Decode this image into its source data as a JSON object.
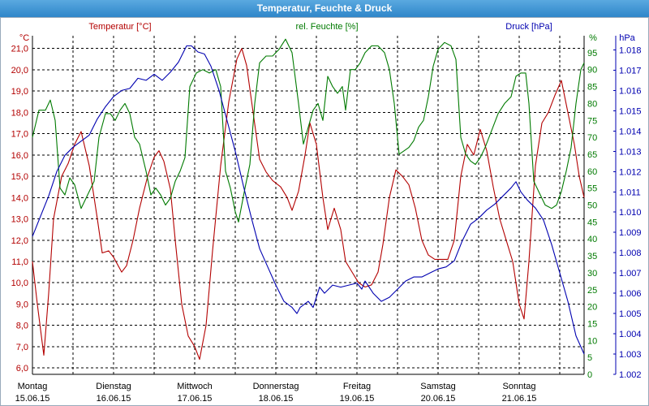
{
  "window": {
    "title": "Temperatur, Feuchte & Druck"
  },
  "colors": {
    "temperature": "#b30000",
    "humidity": "#007a00",
    "pressure": "#0000b0",
    "grid": "#000000",
    "title_bg": "#3a93d4"
  },
  "chart_data": {
    "type": "line",
    "title": "Temperatur, Feuchte & Druck",
    "x_labels": [
      {
        "day": "Montag",
        "date": "15.06.15"
      },
      {
        "day": "Dienstag",
        "date": "16.06.15"
      },
      {
        "day": "Mittwoch",
        "date": "17.06.15"
      },
      {
        "day": "Donnerstag",
        "date": "18.06.15"
      },
      {
        "day": "Freitag",
        "date": "19.06.15"
      },
      {
        "day": "Samstag",
        "date": "20.06.15"
      },
      {
        "day": "Sonntag",
        "date": "21.06.15"
      }
    ],
    "xlim": [
      0,
      6.8
    ],
    "grid": true,
    "axes": {
      "temperature": {
        "label": "Temperatur [°C]",
        "unit": "°C",
        "ylim": [
          5.7,
          21.6
        ],
        "ticks": [
          "6,0",
          "7,0",
          "8,0",
          "9,0",
          "10,0",
          "11,0",
          "12,0",
          "13,0",
          "14,0",
          "15,0",
          "16,0",
          "17,0",
          "18,0",
          "19,0",
          "20,0",
          "21,0"
        ]
      },
      "humidity": {
        "label": "rel. Feuchte [%]",
        "unit": "%",
        "ylim": [
          0,
          100
        ],
        "ticks": [
          "0",
          "5",
          "10",
          "15",
          "20",
          "25",
          "30",
          "35",
          "40",
          "45",
          "50",
          "55",
          "60",
          "65",
          "70",
          "75",
          "80",
          "85",
          "90",
          "95"
        ]
      },
      "pressure": {
        "label": "Druck [hPa]",
        "unit": "hPa",
        "ylim": [
          1002.0,
          1018.7
        ],
        "ticks": [
          "1.002",
          "1.003",
          "1.004",
          "1.005",
          "1.006",
          "1.007",
          "1.008",
          "1.009",
          "1.010",
          "1.011",
          "1.012",
          "1.013",
          "1.014",
          "1.015",
          "1.016",
          "1.017",
          "1.018"
        ]
      }
    },
    "series": [
      {
        "name": "Temperatur [°C]",
        "axis": "temperature",
        "points": [
          [
            0,
            11.0
          ],
          [
            0.06,
            9.0
          ],
          [
            0.14,
            6.6
          ],
          [
            0.2,
            9.5
          ],
          [
            0.26,
            13.0
          ],
          [
            0.36,
            15.0
          ],
          [
            0.44,
            15.6
          ],
          [
            0.52,
            16.5
          ],
          [
            0.6,
            17.1
          ],
          [
            0.7,
            15.5
          ],
          [
            0.8,
            13.0
          ],
          [
            0.86,
            11.4
          ],
          [
            0.94,
            11.5
          ],
          [
            1.0,
            11.2
          ],
          [
            1.1,
            10.5
          ],
          [
            1.16,
            10.8
          ],
          [
            1.24,
            12.0
          ],
          [
            1.32,
            13.5
          ],
          [
            1.42,
            15.0
          ],
          [
            1.5,
            15.9
          ],
          [
            1.56,
            16.2
          ],
          [
            1.62,
            15.7
          ],
          [
            1.7,
            14.4
          ],
          [
            1.76,
            12.0
          ],
          [
            1.84,
            9.0
          ],
          [
            1.92,
            7.5
          ],
          [
            2.0,
            7.0
          ],
          [
            2.06,
            6.4
          ],
          [
            2.14,
            8.0
          ],
          [
            2.22,
            11.5
          ],
          [
            2.32,
            15.5
          ],
          [
            2.42,
            18.5
          ],
          [
            2.52,
            20.5
          ],
          [
            2.58,
            21.0
          ],
          [
            2.64,
            20.2
          ],
          [
            2.72,
            18.0
          ],
          [
            2.8,
            15.8
          ],
          [
            2.88,
            15.2
          ],
          [
            2.96,
            14.8
          ],
          [
            3.06,
            14.5
          ],
          [
            3.14,
            14.0
          ],
          [
            3.2,
            13.4
          ],
          [
            3.28,
            14.3
          ],
          [
            3.36,
            16.0
          ],
          [
            3.42,
            17.5
          ],
          [
            3.5,
            16.5
          ],
          [
            3.58,
            14.0
          ],
          [
            3.64,
            12.5
          ],
          [
            3.72,
            13.5
          ],
          [
            3.8,
            12.5
          ],
          [
            3.86,
            11.0
          ],
          [
            3.94,
            10.5
          ],
          [
            4.02,
            10.0
          ],
          [
            4.1,
            9.8
          ],
          [
            4.18,
            9.9
          ],
          [
            4.26,
            10.5
          ],
          [
            4.32,
            11.8
          ],
          [
            4.4,
            14.0
          ],
          [
            4.48,
            15.3
          ],
          [
            4.56,
            15.0
          ],
          [
            4.64,
            14.6
          ],
          [
            4.72,
            13.5
          ],
          [
            4.8,
            12.0
          ],
          [
            4.88,
            11.3
          ],
          [
            4.96,
            11.1
          ],
          [
            5.04,
            11.1
          ],
          [
            5.12,
            11.1
          ],
          [
            5.2,
            12.0
          ],
          [
            5.28,
            15.0
          ],
          [
            5.36,
            16.5
          ],
          [
            5.44,
            16.0
          ],
          [
            5.52,
            17.2
          ],
          [
            5.6,
            16.2
          ],
          [
            5.68,
            14.5
          ],
          [
            5.76,
            13.0
          ],
          [
            5.84,
            12.0
          ],
          [
            5.92,
            11.0
          ],
          [
            6.0,
            9.0
          ],
          [
            6.06,
            8.3
          ],
          [
            6.12,
            11.0
          ],
          [
            6.2,
            15.5
          ],
          [
            6.28,
            17.5
          ],
          [
            6.36,
            18.0
          ],
          [
            6.44,
            18.8
          ],
          [
            6.52,
            19.5
          ],
          [
            6.6,
            18.0
          ],
          [
            6.68,
            16.5
          ],
          [
            6.74,
            15.0
          ],
          [
            6.8,
            14.0
          ]
        ]
      },
      {
        "name": "rel. Feuchte [%]",
        "axis": "humidity",
        "points": [
          [
            0,
            70
          ],
          [
            0.08,
            78
          ],
          [
            0.16,
            78
          ],
          [
            0.22,
            81
          ],
          [
            0.28,
            75
          ],
          [
            0.34,
            55
          ],
          [
            0.4,
            53
          ],
          [
            0.46,
            58
          ],
          [
            0.52,
            56
          ],
          [
            0.6,
            49
          ],
          [
            0.68,
            53
          ],
          [
            0.76,
            57
          ],
          [
            0.82,
            70
          ],
          [
            0.9,
            77
          ],
          [
            0.96,
            77
          ],
          [
            1.02,
            75
          ],
          [
            1.08,
            78
          ],
          [
            1.14,
            80
          ],
          [
            1.2,
            77
          ],
          [
            1.26,
            70
          ],
          [
            1.32,
            68
          ],
          [
            1.4,
            60
          ],
          [
            1.46,
            53
          ],
          [
            1.52,
            55
          ],
          [
            1.58,
            53
          ],
          [
            1.64,
            50
          ],
          [
            1.7,
            52
          ],
          [
            1.76,
            57
          ],
          [
            1.82,
            60
          ],
          [
            1.88,
            64
          ],
          [
            1.94,
            85
          ],
          [
            2.02,
            89
          ],
          [
            2.1,
            90
          ],
          [
            2.18,
            89
          ],
          [
            2.26,
            90
          ],
          [
            2.32,
            85
          ],
          [
            2.38,
            60
          ],
          [
            2.44,
            55
          ],
          [
            2.5,
            48
          ],
          [
            2.54,
            45
          ],
          [
            2.62,
            55
          ],
          [
            2.68,
            62
          ],
          [
            2.74,
            80
          ],
          [
            2.8,
            92
          ],
          [
            2.88,
            94
          ],
          [
            2.96,
            94
          ],
          [
            3.04,
            96
          ],
          [
            3.12,
            99
          ],
          [
            3.2,
            95
          ],
          [
            3.28,
            80
          ],
          [
            3.34,
            68
          ],
          [
            3.4,
            73
          ],
          [
            3.46,
            78
          ],
          [
            3.52,
            80
          ],
          [
            3.58,
            75
          ],
          [
            3.64,
            88
          ],
          [
            3.7,
            85
          ],
          [
            3.76,
            83
          ],
          [
            3.82,
            85
          ],
          [
            3.86,
            78
          ],
          [
            3.92,
            90
          ],
          [
            3.98,
            90
          ],
          [
            4.04,
            92
          ],
          [
            4.1,
            95
          ],
          [
            4.18,
            97
          ],
          [
            4.26,
            97
          ],
          [
            4.34,
            95
          ],
          [
            4.4,
            90
          ],
          [
            4.46,
            80
          ],
          [
            4.52,
            65
          ],
          [
            4.58,
            66
          ],
          [
            4.64,
            67
          ],
          [
            4.7,
            69
          ],
          [
            4.76,
            73
          ],
          [
            4.82,
            75
          ],
          [
            4.88,
            82
          ],
          [
            4.94,
            91
          ],
          [
            5.0,
            96
          ],
          [
            5.08,
            98
          ],
          [
            5.16,
            97
          ],
          [
            5.22,
            93
          ],
          [
            5.28,
            70
          ],
          [
            5.34,
            65
          ],
          [
            5.4,
            63
          ],
          [
            5.46,
            62
          ],
          [
            5.52,
            64
          ],
          [
            5.58,
            67
          ],
          [
            5.66,
            72
          ],
          [
            5.74,
            77
          ],
          [
            5.82,
            80
          ],
          [
            5.9,
            82
          ],
          [
            5.96,
            88
          ],
          [
            6.02,
            89
          ],
          [
            6.08,
            89
          ],
          [
            6.12,
            80
          ],
          [
            6.18,
            57
          ],
          [
            6.26,
            53
          ],
          [
            6.32,
            50
          ],
          [
            6.4,
            49
          ],
          [
            6.46,
            50
          ],
          [
            6.52,
            54
          ],
          [
            6.58,
            60
          ],
          [
            6.64,
            67
          ],
          [
            6.7,
            80
          ],
          [
            6.76,
            90
          ],
          [
            6.8,
            92
          ]
        ]
      },
      {
        "name": "Druck [hPa]",
        "axis": "pressure",
        "points": [
          [
            0,
            1008.8
          ],
          [
            0.1,
            1009.8
          ],
          [
            0.2,
            1010.8
          ],
          [
            0.3,
            1012.0
          ],
          [
            0.4,
            1012.8
          ],
          [
            0.5,
            1013.2
          ],
          [
            0.6,
            1013.5
          ],
          [
            0.7,
            1013.8
          ],
          [
            0.8,
            1014.6
          ],
          [
            0.9,
            1015.2
          ],
          [
            1.0,
            1015.7
          ],
          [
            1.1,
            1016.0
          ],
          [
            1.2,
            1016.1
          ],
          [
            1.3,
            1016.6
          ],
          [
            1.4,
            1016.5
          ],
          [
            1.5,
            1016.8
          ],
          [
            1.6,
            1016.5
          ],
          [
            1.7,
            1016.9
          ],
          [
            1.8,
            1017.4
          ],
          [
            1.9,
            1018.2
          ],
          [
            1.96,
            1018.2
          ],
          [
            2.04,
            1017.9
          ],
          [
            2.12,
            1017.8
          ],
          [
            2.2,
            1017.2
          ],
          [
            2.3,
            1016.0
          ],
          [
            2.4,
            1014.5
          ],
          [
            2.5,
            1013.0
          ],
          [
            2.6,
            1011.3
          ],
          [
            2.7,
            1009.7
          ],
          [
            2.8,
            1008.2
          ],
          [
            2.9,
            1007.3
          ],
          [
            3.0,
            1006.4
          ],
          [
            3.1,
            1005.6
          ],
          [
            3.2,
            1005.3
          ],
          [
            3.26,
            1005.0
          ],
          [
            3.3,
            1005.3
          ],
          [
            3.4,
            1005.6
          ],
          [
            3.46,
            1005.3
          ],
          [
            3.54,
            1006.3
          ],
          [
            3.6,
            1006.0
          ],
          [
            3.7,
            1006.4
          ],
          [
            3.8,
            1006.3
          ],
          [
            3.9,
            1006.4
          ],
          [
            4.0,
            1006.5
          ],
          [
            4.06,
            1006.2
          ],
          [
            4.1,
            1006.6
          ],
          [
            4.2,
            1006.0
          ],
          [
            4.3,
            1005.6
          ],
          [
            4.4,
            1005.8
          ],
          [
            4.5,
            1006.2
          ],
          [
            4.6,
            1006.6
          ],
          [
            4.7,
            1006.8
          ],
          [
            4.8,
            1006.8
          ],
          [
            4.9,
            1007.0
          ],
          [
            5.0,
            1007.2
          ],
          [
            5.1,
            1007.3
          ],
          [
            5.2,
            1007.6
          ],
          [
            5.3,
            1008.6
          ],
          [
            5.4,
            1009.4
          ],
          [
            5.5,
            1009.7
          ],
          [
            5.6,
            1010.1
          ],
          [
            5.7,
            1010.4
          ],
          [
            5.8,
            1010.8
          ],
          [
            5.9,
            1011.2
          ],
          [
            5.96,
            1011.5
          ],
          [
            6.02,
            1011.0
          ],
          [
            6.1,
            1010.6
          ],
          [
            6.2,
            1010.2
          ],
          [
            6.3,
            1009.6
          ],
          [
            6.4,
            1008.4
          ],
          [
            6.5,
            1007.0
          ],
          [
            6.6,
            1005.6
          ],
          [
            6.7,
            1003.9
          ],
          [
            6.8,
            1003.0
          ]
        ]
      }
    ]
  }
}
